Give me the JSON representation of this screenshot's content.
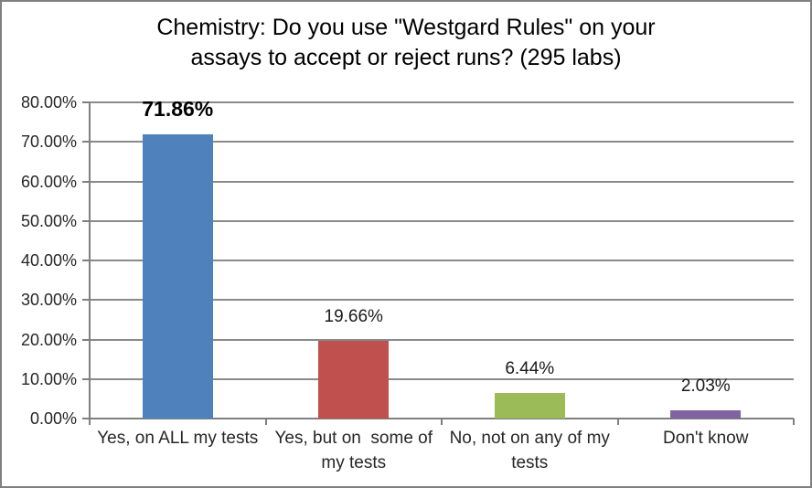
{
  "title": {
    "line1": "Chemistry: Do you use \"Westgard Rules\" on your",
    "line2": "assays to accept or reject runs? (295 labs)"
  },
  "chart_data": {
    "type": "bar",
    "title": "Chemistry: Do you use \"Westgard Rules\" on your assays to accept or reject runs? (295 labs)",
    "categories": [
      "Yes, on ALL my tests",
      "Yes, but on  some of my tests",
      "No, not on any of my tests",
      "Don't know"
    ],
    "values": [
      71.86,
      19.66,
      6.44,
      2.03
    ],
    "data_labels": [
      "71.86%",
      "19.66%",
      "6.44%",
      "2.03%"
    ],
    "emphasized_label_index": 0,
    "bar_colors": [
      "#4F81BD",
      "#C0504D",
      "#9BBB59",
      "#8064A2"
    ],
    "xlabel": "",
    "ylabel": "",
    "ylim": [
      0,
      80
    ],
    "ytick_step": 10,
    "ytick_labels": [
      "0.00%",
      "10.00%",
      "20.00%",
      "30.00%",
      "40.00%",
      "50.00%",
      "60.00%",
      "70.00%",
      "80.00%"
    ],
    "grid": true,
    "legend": false
  },
  "colors": {
    "gridline": "#8a8a8a",
    "axis": "#7f7f7f",
    "frame_border": "#808080",
    "text": "#262626",
    "background": "#ffffff"
  }
}
